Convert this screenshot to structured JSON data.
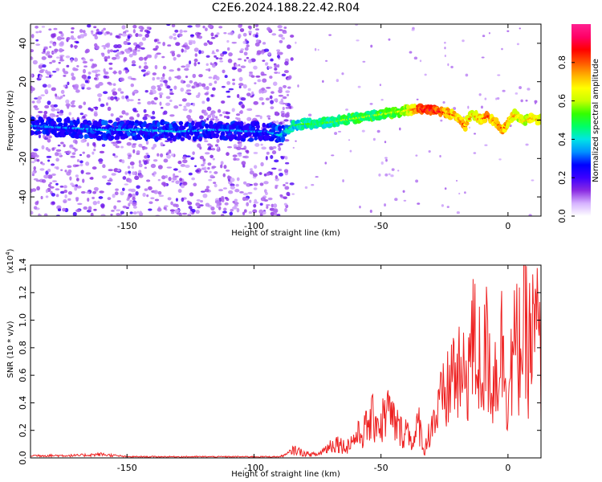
{
  "chart_data": [
    {
      "type": "heatmap",
      "title": "C2E6.2024.188.22.42.R04",
      "xlabel": "Height of straight line (km)",
      "ylabel": "Frequency (Hz)",
      "xlim": [
        -188,
        13
      ],
      "ylim": [
        -50,
        50
      ],
      "x_ticks": [
        -150,
        -100,
        -50,
        0
      ],
      "y_ticks": [
        -40,
        -20,
        0,
        20,
        40
      ],
      "colorbar": {
        "label": "Normalized spectral amplitude",
        "range": [
          0,
          1
        ],
        "ticks": [
          "0.0",
          "0.2",
          "0.4",
          "0.6",
          "0.8"
        ],
        "colors": [
          "#ffffff",
          "#d6b2ff",
          "#8a2be2",
          "#3c00ff",
          "#0000ff",
          "#0090ff",
          "#00e5e5",
          "#00ff66",
          "#33ff00",
          "#c8ff00",
          "#ffff00",
          "#ffb000",
          "#ff5500",
          "#ff0000",
          "#ff0066",
          "#ff2090"
        ]
      },
      "ridge": {
        "x": [
          -188,
          -175,
          -160,
          -145,
          -130,
          -115,
          -100,
          -95,
          -90,
          -85,
          -80,
          -75,
          -70,
          -65,
          -60,
          -55,
          -50,
          -45,
          -40,
          -35,
          -30,
          -25,
          -20,
          -17,
          -14,
          -11,
          -8,
          -5,
          -2,
          0,
          3,
          6,
          9,
          12
        ],
        "y": [
          -3,
          -4,
          -5,
          -5,
          -6,
          -5,
          -6,
          -6,
          -8,
          -3,
          -2,
          -2,
          -1,
          0,
          1,
          2,
          3,
          4,
          5,
          6,
          5,
          4,
          2,
          -3,
          3,
          0,
          2,
          -1,
          -5,
          -1,
          3,
          -1,
          1,
          0
        ],
        "amplitude": [
          0.3,
          0.3,
          0.32,
          0.32,
          0.32,
          0.3,
          0.3,
          0.28,
          0.36,
          0.45,
          0.48,
          0.5,
          0.5,
          0.55,
          0.55,
          0.55,
          0.55,
          0.58,
          0.62,
          0.85,
          0.9,
          0.8,
          0.75,
          0.8,
          0.7,
          0.75,
          0.8,
          0.75,
          0.8,
          0.75,
          0.7,
          0.65,
          0.7,
          0.7
        ]
      }
    },
    {
      "type": "line",
      "xlabel": "Height of straight line (km)",
      "ylabel": "SNR (10 * v/v)",
      "y_multiplier": "(x10",
      "y_multiplier_exp": "4",
      "xlim": [
        -188,
        13
      ],
      "ylim": [
        0,
        1.4
      ],
      "x_ticks": [
        -150,
        -100,
        -50,
        0
      ],
      "y_ticks": [
        "0.0",
        "0.2",
        "0.4",
        "0.6",
        "0.8",
        "1.0",
        "1.2",
        "1.4"
      ],
      "color": "#ee2222",
      "series": [
        {
          "x": [
            -188,
            -180,
            -170,
            -160,
            -150,
            -140,
            -130,
            -120,
            -110,
            -100,
            -95,
            -90,
            -87,
            -84,
            -80,
            -75,
            -70,
            -67,
            -64,
            -60,
            -57,
            -54,
            -52,
            -50,
            -48,
            -45,
            -42,
            -40,
            -37,
            -35,
            -33,
            -30,
            -28,
            -26,
            -24,
            -22,
            -20,
            -18,
            -16,
            -14,
            -12,
            -10,
            -8,
            -6,
            -4,
            -2,
            0,
            2,
            4,
            6,
            8,
            10,
            12,
            13
          ],
          "values": [
            0.02,
            0.02,
            0.02,
            0.03,
            0.01,
            0.01,
            0.01,
            0.01,
            0.01,
            0.01,
            0.01,
            0.01,
            0.03,
            0.08,
            0.04,
            0.03,
            0.12,
            0.15,
            0.1,
            0.2,
            0.25,
            0.35,
            0.4,
            0.3,
            0.48,
            0.35,
            0.25,
            0.28,
            0.15,
            0.35,
            0.05,
            0.35,
            0.4,
            0.55,
            0.6,
            0.85,
            0.8,
            0.7,
            0.9,
            1.1,
            1.0,
            0.85,
            1.1,
            0.7,
            0.95,
            1.1,
            0.6,
            1.0,
            1.05,
            1.2,
            1.1,
            1.15,
            1.25,
            0.65
          ]
        }
      ]
    }
  ]
}
